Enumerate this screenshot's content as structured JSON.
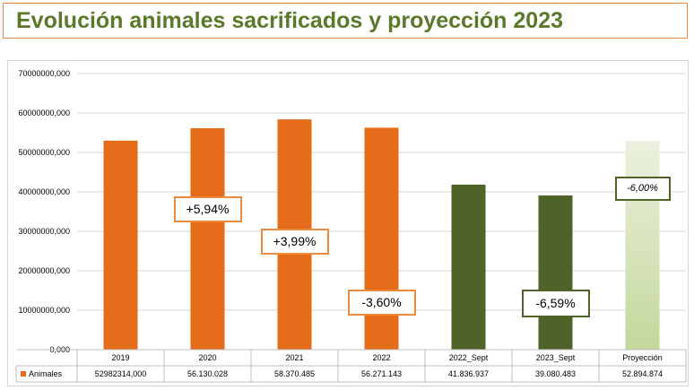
{
  "title": "Evolución animales sacrificados y proyección 2023",
  "colors": {
    "orange": "#e46c1a",
    "green": "#4f6228",
    "projection_light": "#ebf1de",
    "projection_dark": "#c4d79b",
    "title": "#5a7a2a",
    "title_border": "#e8893f"
  },
  "chart_data": {
    "type": "bar",
    "categories": [
      "2019",
      "2020",
      "2021",
      "2022",
      "2022_Sept",
      "2023_Sept",
      "Proyección"
    ],
    "series": [
      {
        "name": "Animales",
        "values": [
          52982314,
          56130028,
          58370485,
          56271143,
          41836937,
          39080483,
          52894874
        ],
        "value_labels": [
          "52982314,000",
          "56.130.028",
          "58.370.485",
          "56.271.143",
          "41.836.937",
          "39.080.483",
          "52.894.874"
        ],
        "bar_styles": [
          "orange",
          "orange",
          "orange",
          "orange",
          "green",
          "green",
          "projection"
        ]
      }
    ],
    "ylim": [
      0,
      70000000
    ],
    "yticks": [
      0,
      10000000,
      20000000,
      30000000,
      40000000,
      50000000,
      60000000,
      70000000
    ],
    "ytick_labels": [
      "0,000",
      "10000000,000",
      "20000000,000",
      "30000000,000",
      "40000000,000",
      "50000000,000",
      "60000000,000",
      "70000000,000"
    ],
    "grid": true,
    "legend": "data-table",
    "annotations": [
      {
        "text": "+5,94%",
        "category": "2020",
        "y": 35500000,
        "style": "orange"
      },
      {
        "text": "+3,99%",
        "category": "2021",
        "y": 27500000,
        "style": "orange"
      },
      {
        "text": "-3,60%",
        "category": "2022",
        "y": 12000000,
        "style": "orange"
      },
      {
        "text": "-6,59%",
        "category": "2023_Sept",
        "y": 11800000,
        "style": "green"
      },
      {
        "text": "-6,00%",
        "category": "Proyección",
        "y": 40800000,
        "style": "green-italic"
      }
    ]
  }
}
